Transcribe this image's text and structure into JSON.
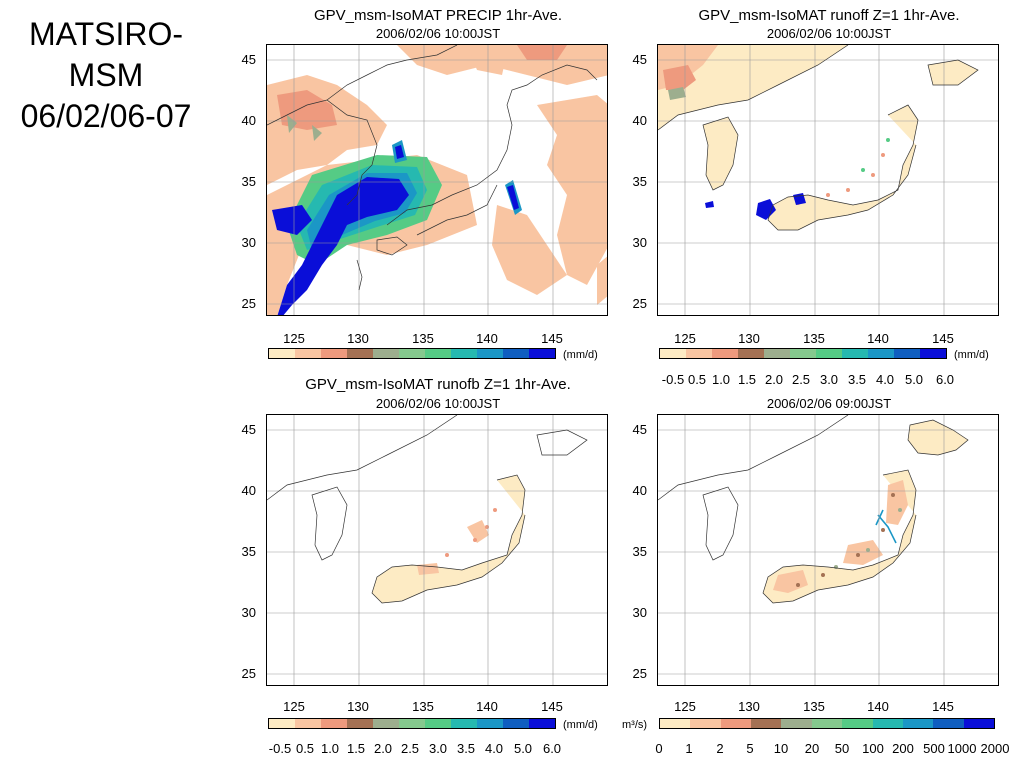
{
  "slide_title": [
    "MATSIRO-",
    "MSM",
    "06/02/06-07"
  ],
  "panels": [
    {
      "id": "precip",
      "title": "GPV_msm-IsoMAT PRECIP 1hr-Ave.",
      "date": "2006/02/06  10:00JST",
      "unit": "(mm/d)",
      "scale_labels": []
    },
    {
      "id": "runoff",
      "title": "GPV_msm-IsoMAT runoff Z=1 1hr-Ave.",
      "date": "2006/02/06  10:00JST",
      "unit": "(mm/d)",
      "scale_labels": [
        "-0.5",
        "0.5",
        "1.0",
        "1.5",
        "2.0",
        "2.5",
        "3.0",
        "3.5",
        "4.0",
        "5.0",
        "6.0"
      ]
    },
    {
      "id": "runofb",
      "title": "GPV_msm-IsoMAT runofb Z=1 1hr-Ave.",
      "date": "2006/02/06  10:00JST",
      "unit": "(mm/d)",
      "scale_labels": [
        "-0.5",
        "0.5",
        "1.0",
        "1.5",
        "2.0",
        "2.5",
        "3.0",
        "3.5",
        "4.0",
        "5.0",
        "6.0"
      ]
    },
    {
      "id": "river",
      "title": "",
      "date": "2006/02/06  09:00JST",
      "unit": "m³/s)",
      "scale_labels": [
        "0",
        "1",
        "2",
        "5",
        "10",
        "20",
        "50",
        "100",
        "200",
        "500",
        "1000",
        "2000"
      ]
    }
  ],
  "axes": {
    "lat_ticks": [
      "45",
      "40",
      "35",
      "30",
      "25"
    ],
    "lon_ticks": [
      "125",
      "130",
      "135",
      "140",
      "145"
    ]
  },
  "colorscale": [
    "#fdebc4",
    "#f9c5a2",
    "#ee9a7e",
    "#a47154",
    "#9dae8e",
    "#85c98e",
    "#55cb85",
    "#26b9b0",
    "#1b97c6",
    "#0f5ec0",
    "#0a0ed8"
  ],
  "colorscale_river": [
    "#fdebc4",
    "#f9c5a2",
    "#ee9a7e",
    "#a47154",
    "#9dae8e",
    "#85c98e",
    "#55cb85",
    "#26b9b0",
    "#1b97c6",
    "#0f5ec0",
    "#0a0ed8"
  ]
}
